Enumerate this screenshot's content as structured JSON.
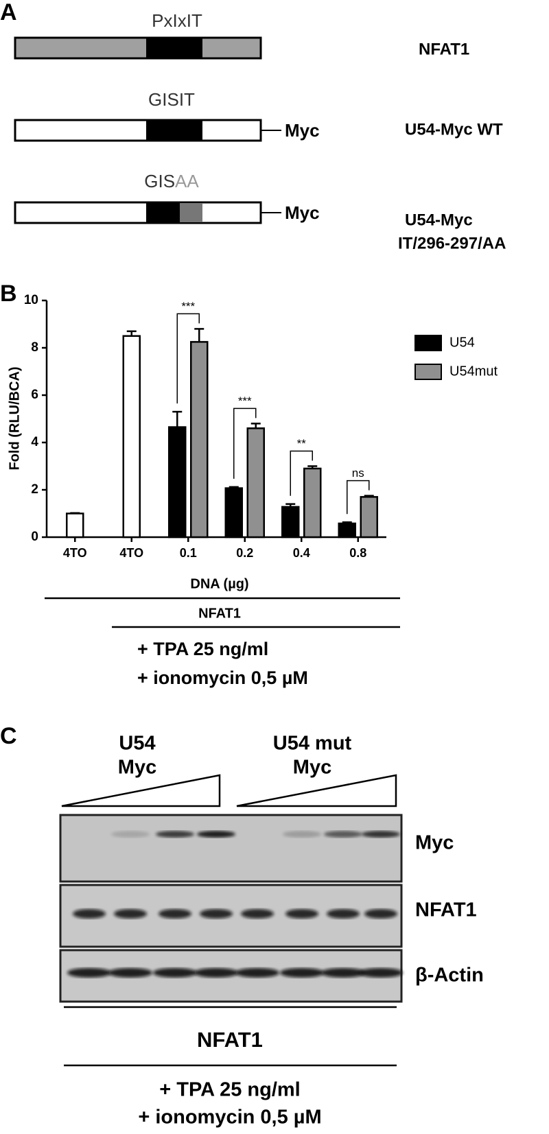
{
  "panel_a": {
    "label": "A",
    "constructs": [
      {
        "motif": "PxIxIT",
        "name": "NFAT1"
      },
      {
        "motif": "GISIT",
        "tag": "Myc",
        "name": "U54-Myc WT"
      },
      {
        "motif_parts": [
          "GIS",
          "AA"
        ],
        "tag": "Myc",
        "name_lines": [
          "U54-Myc",
          "IT/296-297/AA"
        ]
      }
    ]
  },
  "chart_data": {
    "type": "bar",
    "panel_label": "B",
    "ylabel": "Fold (RLU/BCA)",
    "xlabel": "DNA (µg)",
    "categories": [
      "4TO",
      "4TO",
      "0.1",
      "0.2",
      "0.4",
      "0.8"
    ],
    "series": [
      {
        "color": "#ffffff",
        "values": [
          1.0,
          8.5,
          null,
          null,
          null,
          null
        ],
        "errors": [
          0.02,
          0.2,
          null,
          null,
          null,
          null
        ]
      },
      {
        "name": "U54",
        "color": "#000000",
        "values": [
          null,
          null,
          4.65,
          2.07,
          1.28,
          0.58
        ],
        "errors": [
          null,
          null,
          0.65,
          0.05,
          0.12,
          0.05
        ]
      },
      {
        "name": "U54mut",
        "color": "#909090",
        "values": [
          null,
          null,
          8.25,
          4.6,
          2.9,
          1.7
        ],
        "errors": [
          null,
          null,
          0.55,
          0.2,
          0.1,
          0.05
        ]
      }
    ],
    "significance": [
      null,
      null,
      "***",
      "***",
      "**",
      "ns"
    ],
    "ylim": [
      0,
      10
    ],
    "yticks": [
      0,
      2,
      4,
      6,
      8,
      10
    ],
    "conditions": [
      "NFAT1",
      "+ TPA 25 ng/ml",
      "+ ionomycin 0,5 µM"
    ]
  },
  "panel_c": {
    "label": "C",
    "groups": [
      {
        "name": "U54",
        "tag": "Myc"
      },
      {
        "name": "U54 mut",
        "tag": "Myc"
      }
    ],
    "blots": [
      "Myc",
      "NFAT1",
      "β-Actin"
    ],
    "conditions": [
      "NFAT1",
      "+ TPA 25 ng/ml",
      "+ ionomycin 0,5 µM"
    ]
  }
}
